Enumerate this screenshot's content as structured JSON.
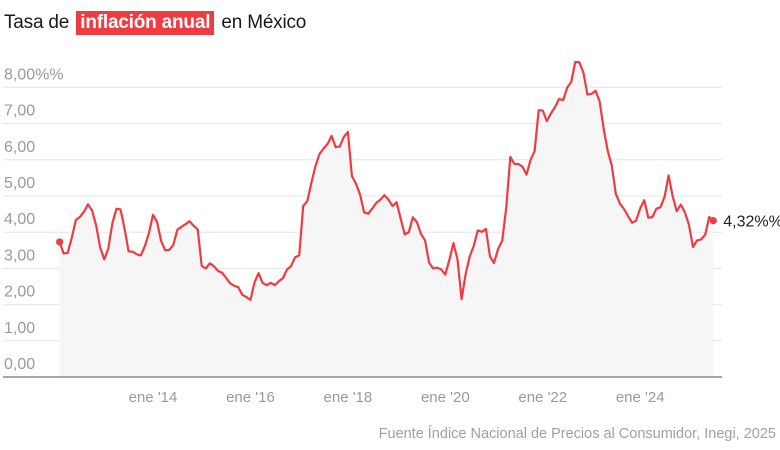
{
  "header": {
    "title_prefix": "Tasa de",
    "title_highlight": "inflación anual",
    "title_suffix": "en México"
  },
  "colors": {
    "line": "#ef3b41",
    "highlight_bg": "#ef3b41",
    "area_fill": "#f6f6f6",
    "grid": "#e6e6e6",
    "axis": "#8a8a8a"
  },
  "source": "Fuente Índice Nacional de Precios al Consumidor, Inegi, 2025",
  "chart_data": {
    "type": "line",
    "title": "Tasa de inflación anual en México",
    "xlabel": "",
    "ylabel": "",
    "ylim": [
      0,
      9
    ],
    "y_ticks": [
      0,
      1,
      2,
      3,
      4,
      5,
      6,
      7,
      8
    ],
    "y_tick_labels": [
      "0,00",
      "1,00",
      "2,00",
      "3,00",
      "4,00",
      "5,00",
      "6,00",
      "7,00",
      "8,00%%"
    ],
    "x_tick_labels": [
      "ene '14",
      "ene '16",
      "ene '18",
      "ene '20",
      "ene '22",
      "ene '24"
    ],
    "x_tick_month_index": [
      24,
      48,
      72,
      96,
      120,
      144
    ],
    "x_start": "feb 2012",
    "x_end": "jun 2025",
    "grid": true,
    "series": [
      {
        "name": "Inflación anual (%)",
        "start_month_index": 1,
        "values": [
          3.73,
          3.41,
          3.43,
          3.85,
          4.34,
          4.42,
          4.57,
          4.77,
          4.6,
          4.18,
          3.57,
          3.25,
          3.55,
          4.25,
          4.65,
          4.63,
          4.09,
          3.47,
          3.46,
          3.39,
          3.36,
          3.62,
          3.97,
          4.48,
          4.28,
          3.76,
          3.5,
          3.51,
          3.65,
          4.07,
          4.15,
          4.22,
          4.3,
          4.18,
          4.08,
          3.07,
          3.0,
          3.14,
          3.06,
          2.93,
          2.88,
          2.74,
          2.59,
          2.52,
          2.48,
          2.27,
          2.21,
          2.13,
          2.61,
          2.87,
          2.6,
          2.54,
          2.6,
          2.54,
          2.65,
          2.73,
          2.97,
          3.06,
          3.31,
          3.36,
          4.72,
          4.86,
          5.35,
          5.82,
          6.16,
          6.31,
          6.44,
          6.66,
          6.35,
          6.37,
          6.63,
          6.77,
          5.55,
          5.34,
          5.04,
          4.55,
          4.51,
          4.65,
          4.81,
          4.9,
          5.02,
          4.9,
          4.72,
          4.83,
          4.37,
          3.94,
          4.0,
          4.41,
          4.28,
          3.95,
          3.78,
          3.16,
          3.0,
          3.02,
          2.97,
          2.83,
          3.24,
          3.7,
          3.25,
          2.15,
          2.84,
          3.33,
          3.62,
          4.05,
          4.01,
          4.09,
          3.33,
          3.15,
          3.54,
          3.76,
          4.67,
          6.08,
          5.89,
          5.88,
          5.81,
          5.59,
          6.0,
          6.24,
          7.37,
          7.36,
          7.07,
          7.28,
          7.45,
          7.68,
          7.65,
          7.99,
          8.15,
          8.7,
          8.7,
          8.41,
          7.8,
          7.82,
          7.91,
          7.62,
          6.85,
          6.25,
          5.84,
          5.06,
          4.79,
          4.64,
          4.45,
          4.26,
          4.32,
          4.66,
          4.88,
          4.4,
          4.42,
          4.65,
          4.69,
          4.98,
          5.57,
          4.99,
          4.58,
          4.76,
          4.55,
          4.21,
          3.59,
          3.77,
          3.8,
          3.93,
          4.42,
          4.32
        ]
      }
    ],
    "end_label": "4,32%%"
  }
}
